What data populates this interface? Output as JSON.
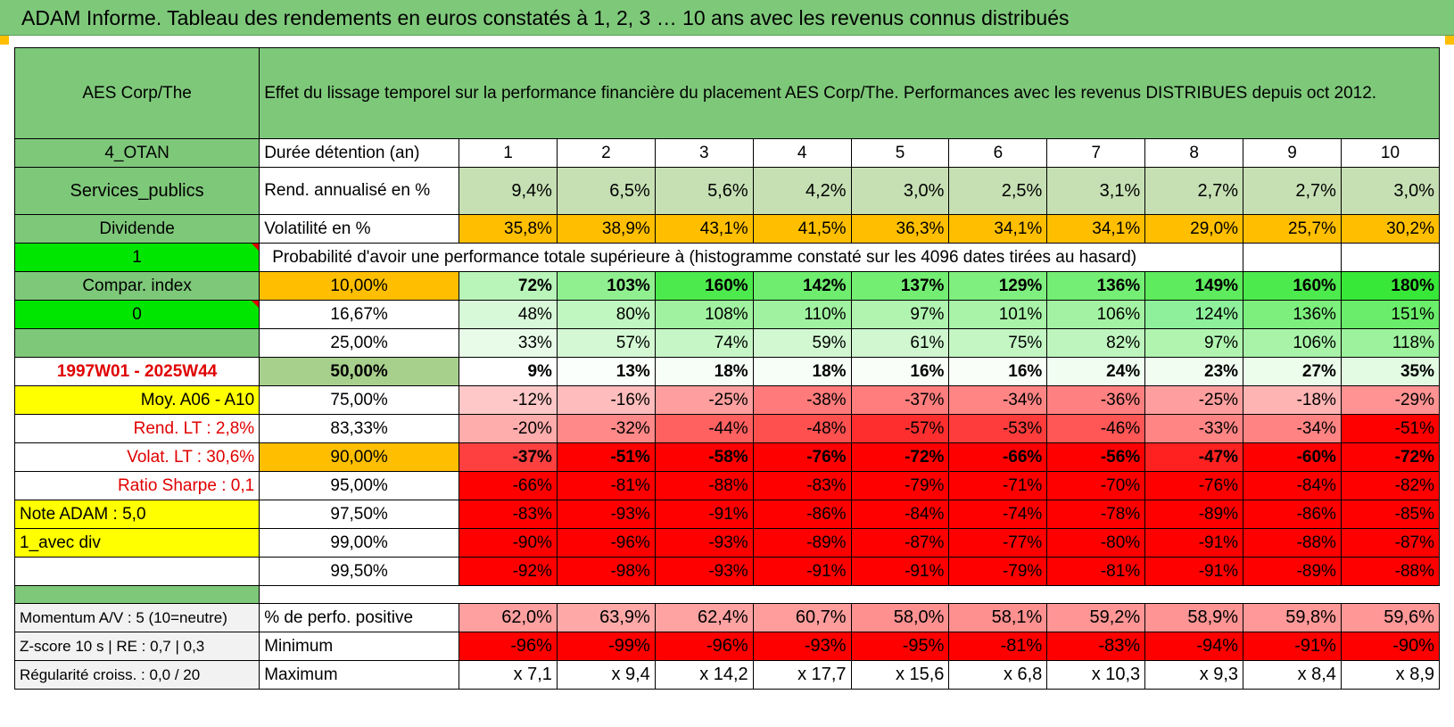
{
  "title": "ADAM Informe. Tableau des rendements en euros constatés à 1, 2, 3 … 10 ans avec les revenus connus distribués",
  "header": {
    "name": "AES Corp/The",
    "description": "Effet du lissage temporel sur la performance financière du placement AES Corp/The. Performances avec les revenus DISTRIBUES depuis oct 2012."
  },
  "left_labels": {
    "otan": "4_OTAN",
    "sector": "Services_publics",
    "dividend": "Dividende",
    "flag1": "1",
    "compar": "Compar. index",
    "flag0": "0",
    "empty": "",
    "period": "1997W01 - 2025W44",
    "moy": "Moy. A06 - A10",
    "rend_lt": "Rend. LT :    2,8%",
    "volat_lt": "Volat. LT :    30,6%",
    "sharpe": "Ratio Sharpe :    0,1",
    "note": "Note ADAM : 5,0",
    "avec_div": "1_avec div",
    "blank": ""
  },
  "row_labels": {
    "duree": "Durée détention (an)",
    "rend": "Rend. annualisé en %",
    "volat": "Volatilité en %",
    "proba": "Probabilité d'avoir une performance totale supérieure à (histogramme constaté sur les 4096 dates tirées au hasard)"
  },
  "years": [
    "1",
    "2",
    "3",
    "4",
    "5",
    "6",
    "7",
    "8",
    "9",
    "10"
  ],
  "rend_annualise": [
    "9,4%",
    "6,5%",
    "5,6%",
    "4,2%",
    "3,0%",
    "2,5%",
    "3,1%",
    "2,7%",
    "2,7%",
    "3,0%"
  ],
  "volatilite": [
    "35,8%",
    "38,9%",
    "43,1%",
    "41,5%",
    "36,3%",
    "34,1%",
    "34,1%",
    "29,0%",
    "25,7%",
    "30,2%"
  ],
  "quantiles": [
    {
      "level": "10,00%",
      "values": [
        "72%",
        "103%",
        "160%",
        "142%",
        "137%",
        "129%",
        "136%",
        "149%",
        "160%",
        "180%"
      ],
      "colors": [
        "#b9f5b9",
        "#90f090",
        "#4dea4d",
        "#6eed6e",
        "#73ee73",
        "#7fef7f",
        "#74ee74",
        "#5eec5e",
        "#4dea4d",
        "#38e838"
      ]
    },
    {
      "level": "16,67%",
      "values": [
        "48%",
        "80%",
        "108%",
        "110%",
        "97%",
        "101%",
        "106%",
        "124%",
        "136%",
        "151%"
      ],
      "colors": [
        "#d8f9d8",
        "#c0f6c0",
        "#a0f2a0",
        "#a0f2a0",
        "#b0f4b0",
        "#a8f3a8",
        "#a3f2a3",
        "#8ef09b",
        "#7def7d",
        "#6aed6a"
      ]
    },
    {
      "level": "25,00%",
      "values": [
        "33%",
        "57%",
        "74%",
        "59%",
        "61%",
        "75%",
        "82%",
        "97%",
        "106%",
        "118%"
      ],
      "colors": [
        "#e8fbe8",
        "#d4f8d4",
        "#c6f6c6",
        "#d2f8d2",
        "#d0f7d0",
        "#c4f6c4",
        "#bef5be",
        "#b0f4b0",
        "#a8f3a8",
        "#9df29d"
      ]
    },
    {
      "level": "50,00%",
      "values": [
        "9%",
        "13%",
        "18%",
        "18%",
        "16%",
        "16%",
        "24%",
        "23%",
        "27%",
        "35%"
      ],
      "colors": [
        "#ffffff",
        "#fbfffb",
        "#f7fef7",
        "#f7fef7",
        "#f9fef9",
        "#f9fef9",
        "#f0fdf0",
        "#f1fdf1",
        "#ecfdec",
        "#e3fbe3"
      ]
    },
    {
      "level": "75,00%",
      "values": [
        "-12%",
        "-16%",
        "-25%",
        "-38%",
        "-37%",
        "-34%",
        "-36%",
        "-25%",
        "-18%",
        "-29%"
      ],
      "colors": [
        "#ffc8c8",
        "#ffbcbc",
        "#ff9e9e",
        "#ff7a7a",
        "#ff7d7d",
        "#ff8585",
        "#ff8080",
        "#ff9e9e",
        "#ffb4b4",
        "#ff9292"
      ]
    },
    {
      "level": "83,33%",
      "values": [
        "-20%",
        "-32%",
        "-44%",
        "-48%",
        "-57%",
        "-53%",
        "-46%",
        "-33%",
        "-34%",
        "-51%"
      ],
      "colors": [
        "#ffacac",
        "#ff8888",
        "#ff6060",
        "#ff5050",
        "#ff2e2e",
        "#ff3c3c",
        "#ff5656",
        "#ff8585",
        "#ff8383",
        "#ff0000"
      ]
    },
    {
      "level": "90,00%",
      "values": [
        "-37%",
        "-51%",
        "-58%",
        "-76%",
        "-72%",
        "-66%",
        "-56%",
        "-47%",
        "-60%",
        "-72%"
      ],
      "colors": [
        "#ff4040",
        "#ff0000",
        "#ff0000",
        "#ff0000",
        "#ff0000",
        "#ff0000",
        "#ff0000",
        "#ff2020",
        "#ff0000",
        "#ff0000"
      ]
    },
    {
      "level": "95,00%",
      "values": [
        "-66%",
        "-81%",
        "-88%",
        "-83%",
        "-79%",
        "-71%",
        "-70%",
        "-76%",
        "-84%",
        "-82%"
      ],
      "colors": [
        "#ff0000",
        "#ff0000",
        "#ff0000",
        "#ff0000",
        "#ff0000",
        "#ff0000",
        "#ff0000",
        "#ff0000",
        "#ff0000",
        "#ff0000"
      ]
    },
    {
      "level": "97,50%",
      "values": [
        "-83%",
        "-93%",
        "-91%",
        "-86%",
        "-84%",
        "-74%",
        "-78%",
        "-89%",
        "-86%",
        "-85%"
      ],
      "colors": [
        "#ff0000",
        "#ff0000",
        "#ff0000",
        "#ff0000",
        "#ff0000",
        "#ff0000",
        "#ff0000",
        "#ff0000",
        "#ff0000",
        "#ff0000"
      ]
    },
    {
      "level": "99,00%",
      "values": [
        "-90%",
        "-96%",
        "-93%",
        "-89%",
        "-87%",
        "-77%",
        "-80%",
        "-91%",
        "-88%",
        "-87%"
      ],
      "colors": [
        "#ff0000",
        "#ff0000",
        "#ff0000",
        "#ff0000",
        "#ff0000",
        "#ff0000",
        "#ff0000",
        "#ff0000",
        "#ff0000",
        "#ff0000"
      ]
    },
    {
      "level": "99,50%",
      "values": [
        "-92%",
        "-98%",
        "-93%",
        "-91%",
        "-91%",
        "-79%",
        "-81%",
        "-91%",
        "-89%",
        "-88%"
      ],
      "colors": [
        "#ff0000",
        "#ff0000",
        "#ff0000",
        "#ff0000",
        "#ff0000",
        "#ff0000",
        "#ff0000",
        "#ff0000",
        "#ff0000",
        "#ff0000"
      ]
    }
  ],
  "bottom": [
    {
      "left": "Momentum A/V : 5 (10=neutre)",
      "label": "% de perfo. positive",
      "values": [
        "62,0%",
        "63,9%",
        "62,4%",
        "60,7%",
        "58,0%",
        "58,1%",
        "59,2%",
        "58,9%",
        "59,8%",
        "59,6%"
      ],
      "colors": [
        "#ffa0a0",
        "#ffa8a8",
        "#ffa2a2",
        "#ff9c9c",
        "#ff9090",
        "#ff9090",
        "#ff9595",
        "#ff9494",
        "#ff9898",
        "#ff9797"
      ]
    },
    {
      "left": "Z-score 10 s | RE : 0,7 | 0,3",
      "label": "Minimum",
      "values": [
        "-96%",
        "-99%",
        "-96%",
        "-93%",
        "-95%",
        "-81%",
        "-83%",
        "-94%",
        "-91%",
        "-90%"
      ],
      "colors": [
        "#ff0000",
        "#ff0000",
        "#ff0000",
        "#ff0000",
        "#ff0000",
        "#ff0000",
        "#ff0000",
        "#ff0000",
        "#ff0000",
        "#ff0000"
      ]
    },
    {
      "left": "Régularité croiss. : 0,0 / 20",
      "label": "Maximum",
      "values": [
        "x 7,1",
        "x 9,4",
        "x 14,2",
        "x 17,7",
        "x 15,6",
        "x 6,8",
        "x 10,3",
        "x 9,3",
        "x 8,4",
        "x 8,9"
      ],
      "colors": [
        "#ffffff",
        "#ffffff",
        "#ffffff",
        "#ffffff",
        "#ffffff",
        "#ffffff",
        "#ffffff",
        "#ffffff",
        "#ffffff",
        "#ffffff"
      ]
    }
  ],
  "colors": {
    "header_green": "#7ec87a",
    "bright_green": "#00e600",
    "orange": "#ffbf00",
    "yellow": "#ffff00",
    "red": "#ff0000",
    "red_text": "#e00000"
  }
}
